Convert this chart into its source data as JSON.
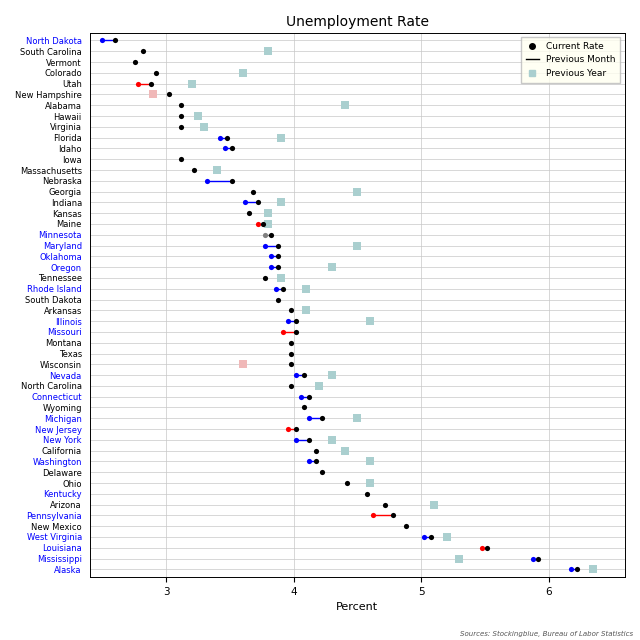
{
  "title": "Unemployment Rate",
  "xlabel": "Percent",
  "source": "Sources: Stockingblue, Bureau of Labor Statistics",
  "xlim": [
    2.4,
    6.6
  ],
  "xticks": [
    3,
    4,
    5,
    6
  ],
  "states": [
    "North Dakota",
    "South Carolina",
    "Vermont",
    "Colorado",
    "Utah",
    "New Hampshire",
    "Alabama",
    "Hawaii",
    "Virginia",
    "Florida",
    "Idaho",
    "Iowa",
    "Massachusetts",
    "Nebraska",
    "Georgia",
    "Indiana",
    "Kansas",
    "Maine",
    "Minnesota",
    "Maryland",
    "Oklahoma",
    "Oregon",
    "Tennessee",
    "Rhode Island",
    "South Dakota",
    "Arkansas",
    "Illinois",
    "Missouri",
    "Montana",
    "Texas",
    "Wisconsin",
    "Nevada",
    "North Carolina",
    "Connecticut",
    "Wyoming",
    "Michigan",
    "New Jersey",
    "New York",
    "California",
    "Washington",
    "Delaware",
    "Ohio",
    "Kentucky",
    "Arizona",
    "Pennsylvania",
    "New Mexico",
    "West Virginia",
    "Louisiana",
    "Mississippi",
    "Alaska"
  ],
  "current": [
    2.6,
    2.82,
    2.76,
    2.92,
    2.88,
    3.02,
    3.12,
    3.12,
    3.12,
    3.48,
    3.52,
    3.12,
    3.22,
    3.52,
    3.68,
    3.72,
    3.65,
    3.76,
    3.82,
    3.88,
    3.88,
    3.88,
    3.78,
    3.92,
    3.88,
    3.98,
    4.02,
    4.02,
    3.98,
    3.98,
    3.98,
    4.08,
    3.98,
    4.12,
    4.08,
    4.22,
    4.02,
    4.12,
    4.18,
    4.18,
    4.22,
    4.42,
    4.58,
    4.72,
    4.78,
    4.88,
    5.08,
    5.52,
    5.92,
    6.22
  ],
  "prev_month_val": [
    2.5,
    null,
    null,
    null,
    2.78,
    null,
    null,
    null,
    null,
    3.42,
    3.46,
    null,
    null,
    3.32,
    null,
    3.62,
    null,
    3.72,
    3.78,
    3.78,
    3.82,
    3.82,
    null,
    3.86,
    null,
    null,
    3.96,
    3.92,
    null,
    null,
    null,
    4.02,
    null,
    4.06,
    null,
    4.12,
    3.96,
    4.02,
    null,
    4.12,
    null,
    null,
    null,
    null,
    4.62,
    null,
    5.02,
    5.48,
    5.88,
    6.18
  ],
  "prev_month_color": [
    "blue",
    null,
    null,
    null,
    "red",
    null,
    null,
    null,
    null,
    "blue",
    "blue",
    null,
    null,
    "blue",
    null,
    "blue",
    null,
    "red",
    "gray",
    "blue",
    "blue",
    "blue",
    null,
    "blue",
    null,
    null,
    "blue",
    "red",
    null,
    null,
    null,
    "blue",
    null,
    "blue",
    null,
    "blue",
    "red",
    "blue",
    null,
    "blue",
    null,
    null,
    null,
    null,
    "red",
    null,
    "blue",
    "red",
    "blue",
    "blue"
  ],
  "prev_year": [
    null,
    3.8,
    null,
    3.6,
    3.2,
    2.9,
    4.4,
    3.25,
    3.3,
    3.9,
    null,
    null,
    3.4,
    null,
    4.5,
    3.9,
    3.8,
    3.8,
    null,
    4.5,
    null,
    4.3,
    3.9,
    4.1,
    null,
    4.1,
    4.6,
    null,
    null,
    null,
    3.6,
    4.3,
    4.2,
    null,
    null,
    4.5,
    null,
    4.3,
    4.4,
    4.6,
    null,
    4.6,
    null,
    5.1,
    null,
    null,
    5.2,
    null,
    5.3,
    6.35
  ],
  "prev_year_color": [
    null,
    "teal",
    null,
    "teal",
    "teal",
    "pink",
    "teal",
    "teal",
    "teal",
    "teal",
    null,
    null,
    "teal",
    null,
    "teal",
    "teal",
    "teal",
    "teal",
    null,
    "teal",
    null,
    "teal",
    "teal",
    "teal",
    "pink",
    "teal",
    "teal",
    null,
    null,
    null,
    "pink",
    "teal",
    "teal",
    null,
    null,
    "teal",
    "pink",
    "teal",
    "teal",
    "teal",
    null,
    "teal",
    null,
    "teal",
    "pink",
    null,
    "teal",
    null,
    "teal",
    "teal"
  ],
  "label_colors": [
    "blue",
    "black",
    "black",
    "black",
    "black",
    "black",
    "black",
    "black",
    "black",
    "black",
    "black",
    "black",
    "black",
    "black",
    "black",
    "black",
    "black",
    "black",
    "blue",
    "blue",
    "blue",
    "blue",
    "black",
    "blue",
    "black",
    "black",
    "blue",
    "blue",
    "black",
    "black",
    "black",
    "blue",
    "black",
    "blue",
    "black",
    "blue",
    "blue",
    "blue",
    "black",
    "blue",
    "black",
    "black",
    "blue",
    "black",
    "blue",
    "black",
    "blue",
    "blue",
    "blue",
    "blue"
  ]
}
